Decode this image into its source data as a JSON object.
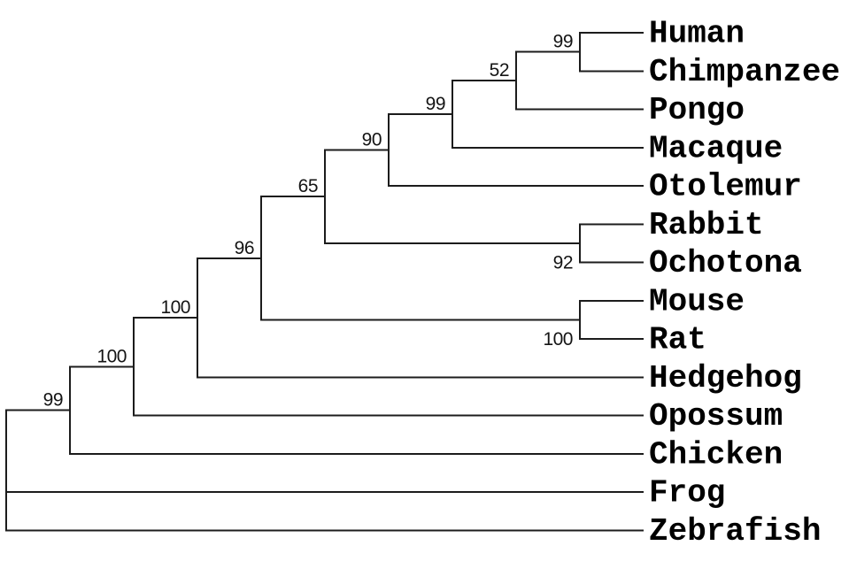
{
  "figure": {
    "type": "phylogenetic-tree-cladogram",
    "background_color": "#ffffff",
    "line_color": "#1c1c1c",
    "label_color": "#000000",
    "taxa": [
      "Human",
      "Chimpanzee",
      "Pongo",
      "Macaque",
      "Otolemur",
      "Rabbit",
      "Ochotona",
      "Mouse",
      "Rat",
      "Hedgehog",
      "Opossum",
      "Chicken",
      "Frog",
      "Zebrafish"
    ],
    "bootstrap_values": [
      99,
      52,
      99,
      90,
      65,
      96,
      100,
      100,
      99,
      92,
      100
    ]
  },
  "tree": {
    "children": [
      {
        "bootstrap": "99",
        "bootstrap_position": "above",
        "children": [
          {
            "bootstrap": "100",
            "bootstrap_position": "above",
            "children": [
              {
                "bootstrap": "100",
                "bootstrap_position": "above",
                "children": [
                  {
                    "bootstrap": "96",
                    "bootstrap_position": "above",
                    "children": [
                      {
                        "bootstrap": "65",
                        "bootstrap_position": "above",
                        "children": [
                          {
                            "bootstrap": "90",
                            "bootstrap_position": "above",
                            "children": [
                              {
                                "bootstrap": "99",
                                "bootstrap_position": "above",
                                "children": [
                                  {
                                    "bootstrap": "52",
                                    "bootstrap_position": "above",
                                    "children": [
                                      {
                                        "bootstrap": "99",
                                        "bootstrap_position": "above",
                                        "children": [
                                          {
                                            "name": "Human"
                                          },
                                          {
                                            "name": "Chimpanzee"
                                          }
                                        ]
                                      },
                                      {
                                        "name": "Pongo"
                                      }
                                    ]
                                  },
                                  {
                                    "name": "Macaque"
                                  }
                                ]
                              },
                              {
                                "name": "Otolemur"
                              }
                            ]
                          },
                          {
                            "bootstrap": "92",
                            "bootstrap_position": "below",
                            "children": [
                              {
                                "name": "Rabbit"
                              },
                              {
                                "name": "Ochotona"
                              }
                            ]
                          }
                        ]
                      },
                      {
                        "bootstrap": "100",
                        "bootstrap_position": "below",
                        "children": [
                          {
                            "name": "Mouse"
                          },
                          {
                            "name": "Rat"
                          }
                        ]
                      }
                    ]
                  },
                  {
                    "name": "Hedgehog"
                  }
                ]
              },
              {
                "name": "Opossum"
              }
            ]
          },
          {
            "name": "Chicken"
          }
        ]
      },
      {
        "name": "Frog"
      },
      {
        "name": "Zebrafish"
      }
    ]
  }
}
